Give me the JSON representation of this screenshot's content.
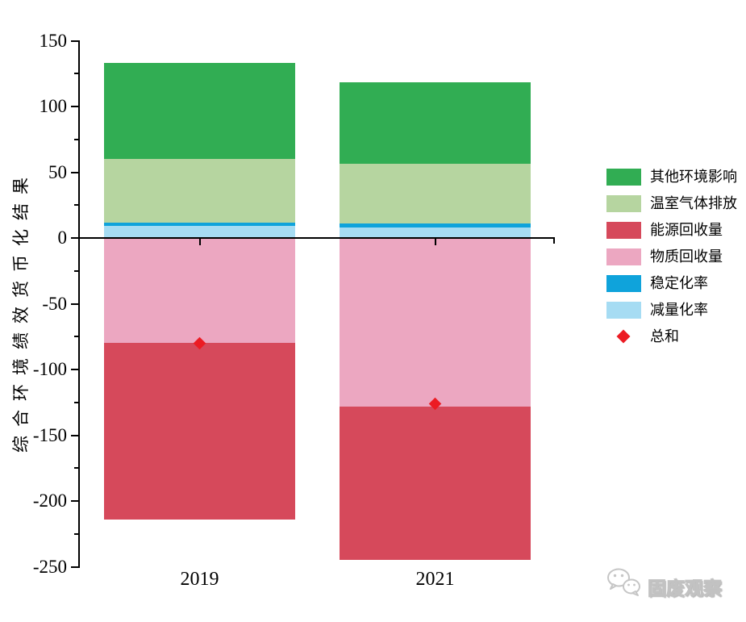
{
  "chart_data": {
    "type": "bar",
    "stacked": true,
    "title": "",
    "xlabel": "",
    "ylabel": "综合环境绩效货币化结果",
    "ylim": [
      -250,
      150
    ],
    "ytick_labels": [
      "150",
      "100",
      "50",
      "0",
      "-50",
      "-100",
      "-150",
      "-200",
      "-250"
    ],
    "ytick_step_major": 50,
    "ytick_step_minor": 25,
    "grid": false,
    "legend_position": "right",
    "categories": [
      "2019",
      "2021"
    ],
    "series": [
      {
        "name": "其他环境影响",
        "color": "#31AD53",
        "values": [
          73,
          62
        ]
      },
      {
        "name": "温室气体排放",
        "color": "#B6D5A0",
        "values": [
          48.5,
          45.5
        ]
      },
      {
        "name": "能源回收量",
        "color": "#D6495B",
        "values": [
          -134,
          -117
        ]
      },
      {
        "name": "物质回收量",
        "color": "#ECA7C1",
        "values": [
          -80,
          -128
        ]
      },
      {
        "name": "稳定化率",
        "color": "#0FA3DB",
        "values": [
          2.5,
          3
        ]
      },
      {
        "name": "减量化率",
        "color": "#A6DCF3",
        "values": [
          9,
          8
        ]
      }
    ],
    "marker_series": {
      "name": "总和",
      "shape": "diamond",
      "color": "#EC1B23",
      "values": [
        -80,
        -126
      ]
    },
    "stack_order_positive": [
      "减量化率",
      "稳定化率",
      "温室气体排放",
      "其他环境影响"
    ],
    "stack_order_negative": [
      "物质回收量",
      "能源回收量"
    ]
  },
  "legend": {
    "items": [
      {
        "label": "其他环境影响",
        "color": "#31AD53",
        "shape": "rect"
      },
      {
        "label": "温室气体排放",
        "color": "#B6D5A0",
        "shape": "rect"
      },
      {
        "label": "能源回收量",
        "color": "#D6495B",
        "shape": "rect"
      },
      {
        "label": "物质回收量",
        "color": "#ECA7C1",
        "shape": "rect"
      },
      {
        "label": "稳定化率",
        "color": "#0FA3DB",
        "shape": "rect"
      },
      {
        "label": "减量化率",
        "color": "#A6DCF3",
        "shape": "rect"
      },
      {
        "label": "总和",
        "color": "#EC1B23",
        "shape": "diamond"
      }
    ]
  },
  "watermark": {
    "text": "固废观察"
  },
  "colors": {
    "axis": "#000000",
    "watermark_gray": "#c6c6c6"
  }
}
